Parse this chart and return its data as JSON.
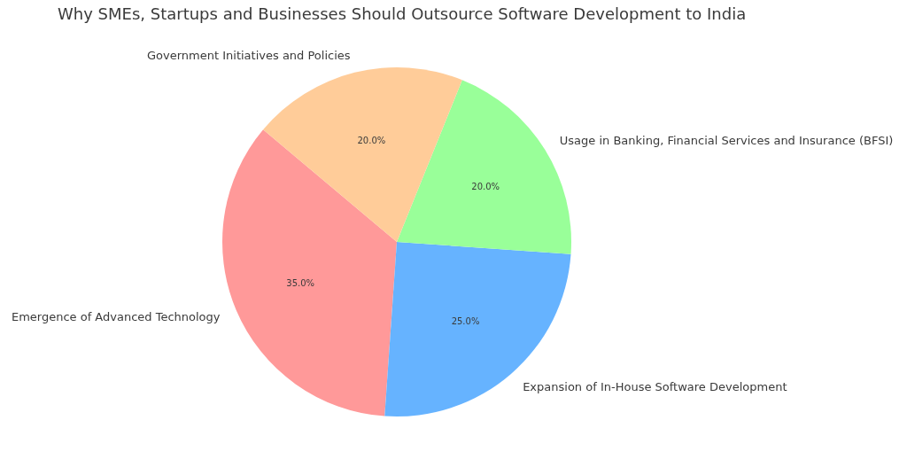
{
  "chart_data": {
    "type": "pie",
    "title": "Why SMEs, Startups and Businesses Should Outsource Software Development to India",
    "categories": [
      "Emergence of Advanced Technology",
      "Expansion of In-House Software Development",
      "Usage in Banking, Financial Services and Insurance (BFSI)",
      "Government Initiatives and Policies"
    ],
    "values": [
      35,
      25,
      20,
      20
    ],
    "colors": [
      "#ff9999",
      "#66b3ff",
      "#99ff99",
      "#ffcc99"
    ],
    "value_labels": [
      "35.0%",
      "25.0%",
      "20.0%",
      "20.0%"
    ]
  }
}
